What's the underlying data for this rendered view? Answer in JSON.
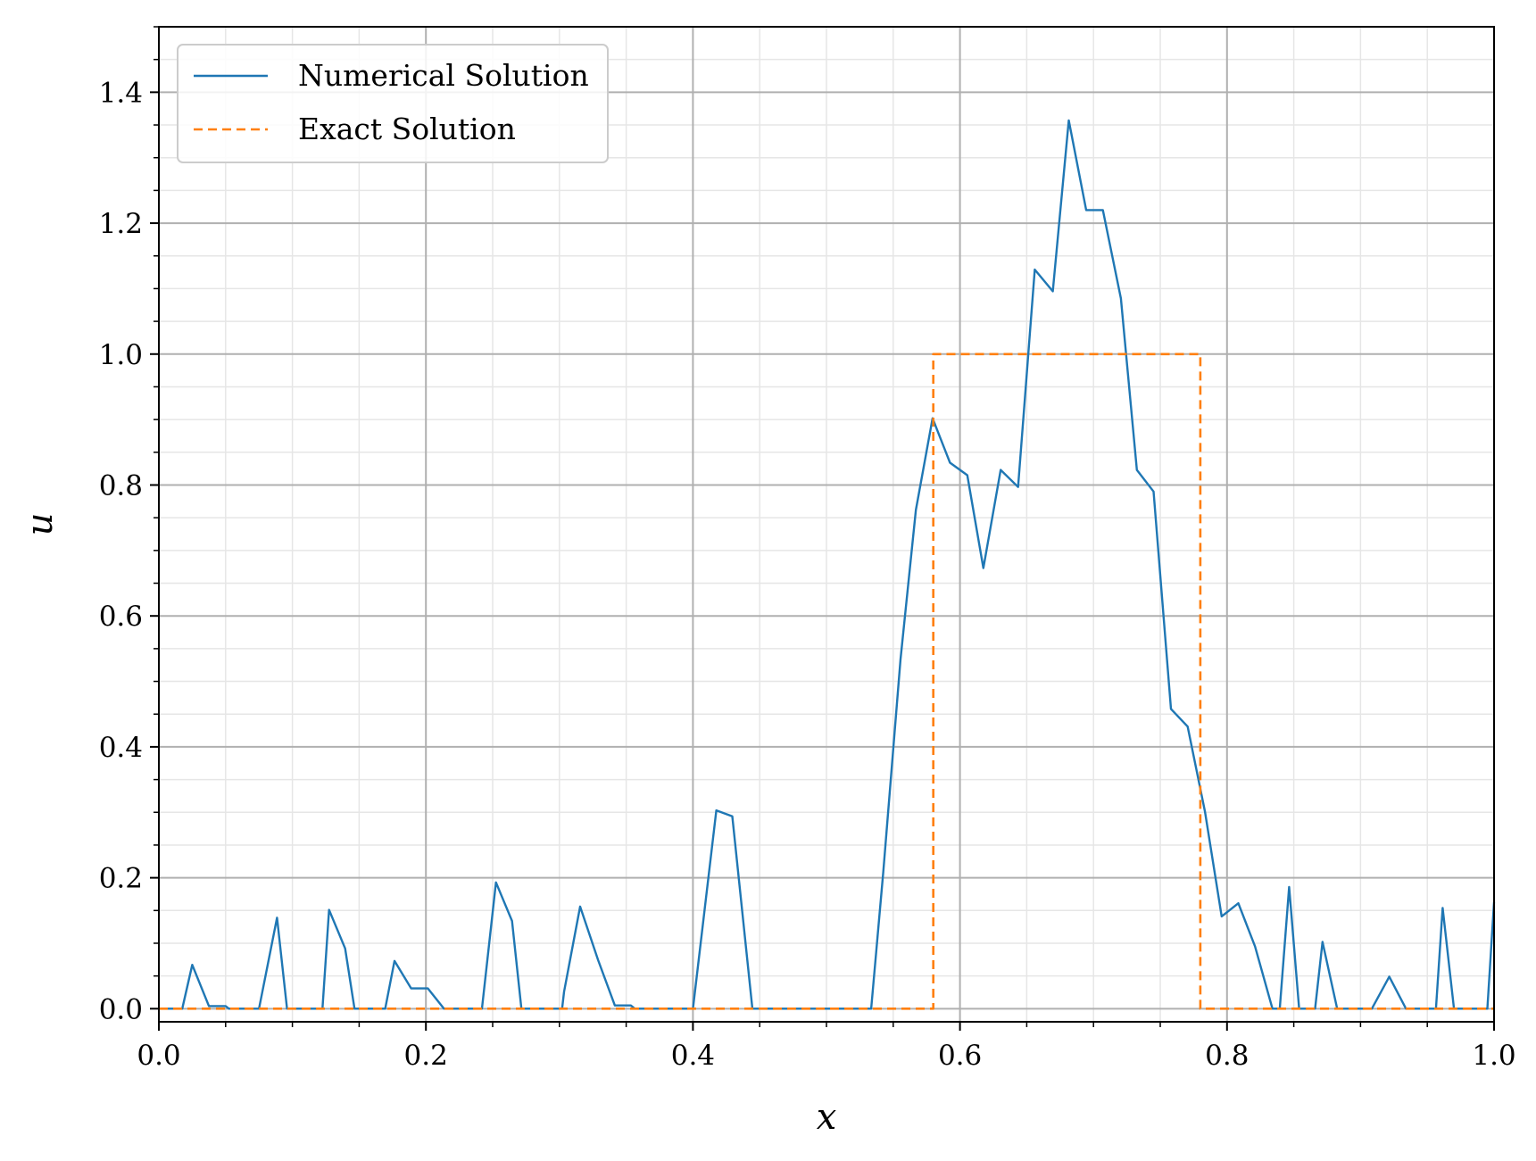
{
  "chart_data": {
    "type": "line",
    "title": "",
    "xlabel": "x",
    "ylabel": "u",
    "xlim": [
      0.0,
      1.0
    ],
    "ylim": [
      -0.02,
      1.5
    ],
    "x_ticks": [
      0.0,
      0.2,
      0.4,
      0.6,
      0.8,
      1.0
    ],
    "x_tick_labels": [
      "0.0",
      "0.2",
      "0.4",
      "0.6",
      "0.8",
      "1.0"
    ],
    "x_minor_step": 0.05,
    "y_ticks": [
      0.0,
      0.2,
      0.4,
      0.6,
      0.8,
      1.0,
      1.2,
      1.4
    ],
    "y_tick_labels": [
      "0.0",
      "0.2",
      "0.4",
      "0.6",
      "0.8",
      "1.0",
      "1.2",
      "1.4"
    ],
    "y_minor_step": 0.05,
    "grid": "major and minor",
    "legend_position": "upper left",
    "series": [
      {
        "name": "Numerical Solution",
        "color": "#1f77b4",
        "style": "solid",
        "points": [
          [
            0.0,
            0.0
          ],
          [
            0.0175,
            0.0
          ],
          [
            0.025,
            0.067
          ],
          [
            0.0375,
            0.004
          ],
          [
            0.05,
            0.004
          ],
          [
            0.0525,
            0.0
          ],
          [
            0.075,
            0.0
          ],
          [
            0.0885,
            0.139
          ],
          [
            0.096,
            0.0
          ],
          [
            0.1225,
            0.0
          ],
          [
            0.1275,
            0.151
          ],
          [
            0.1395,
            0.092
          ],
          [
            0.1465,
            0.0
          ],
          [
            0.1695,
            0.0
          ],
          [
            0.1765,
            0.073
          ],
          [
            0.189,
            0.031
          ],
          [
            0.2015,
            0.031
          ],
          [
            0.2135,
            0.0
          ],
          [
            0.242,
            0.0
          ],
          [
            0.2525,
            0.193
          ],
          [
            0.2645,
            0.134
          ],
          [
            0.2715,
            0.0
          ],
          [
            0.302,
            0.0
          ],
          [
            0.3035,
            0.026
          ],
          [
            0.3155,
            0.156
          ],
          [
            0.329,
            0.074
          ],
          [
            0.3415,
            0.005
          ],
          [
            0.3535,
            0.005
          ],
          [
            0.3565,
            0.0
          ],
          [
            0.4,
            0.0
          ],
          [
            0.4175,
            0.303
          ],
          [
            0.4295,
            0.294
          ],
          [
            0.4445,
            0.0
          ],
          [
            0.5335,
            0.0
          ],
          [
            0.5425,
            0.208
          ],
          [
            0.5555,
            0.534
          ],
          [
            0.567,
            0.762
          ],
          [
            0.5795,
            0.902
          ],
          [
            0.5925,
            0.834
          ],
          [
            0.6055,
            0.815
          ],
          [
            0.6175,
            0.673
          ],
          [
            0.6305,
            0.823
          ],
          [
            0.6435,
            0.797
          ],
          [
            0.656,
            1.129
          ],
          [
            0.6695,
            1.096
          ],
          [
            0.6815,
            1.357
          ],
          [
            0.6945,
            1.22
          ],
          [
            0.707,
            1.22
          ],
          [
            0.7205,
            1.085
          ],
          [
            0.7325,
            0.823
          ],
          [
            0.745,
            0.79
          ],
          [
            0.758,
            0.458
          ],
          [
            0.7705,
            0.431
          ],
          [
            0.7835,
            0.301
          ],
          [
            0.796,
            0.141
          ],
          [
            0.8085,
            0.161
          ],
          [
            0.821,
            0.095
          ],
          [
            0.834,
            0.0
          ],
          [
            0.8395,
            0.0
          ],
          [
            0.8465,
            0.186
          ],
          [
            0.854,
            0.0
          ],
          [
            0.866,
            0.0
          ],
          [
            0.8715,
            0.102
          ],
          [
            0.8825,
            0.0
          ],
          [
            0.9085,
            0.0
          ],
          [
            0.9215,
            0.049
          ],
          [
            0.934,
            0.0
          ],
          [
            0.9565,
            0.0
          ],
          [
            0.9615,
            0.154
          ],
          [
            0.97,
            0.0
          ],
          [
            0.995,
            0.0
          ],
          [
            1.0,
            0.163
          ]
        ]
      },
      {
        "name": "Exact Solution",
        "color": "#ff7f0e",
        "style": "dashed",
        "points": [
          [
            0.0,
            0.0
          ],
          [
            0.58,
            0.0
          ],
          [
            0.58,
            1.0
          ],
          [
            0.78,
            1.0
          ],
          [
            0.78,
            0.0
          ],
          [
            1.0,
            0.0
          ]
        ]
      }
    ]
  }
}
